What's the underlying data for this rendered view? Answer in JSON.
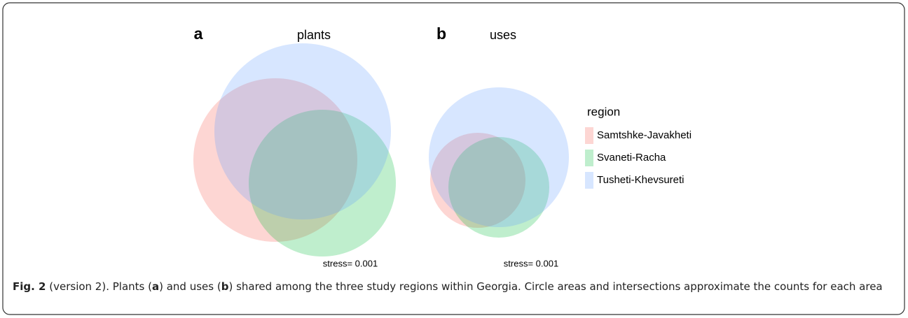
{
  "panels": [
    {
      "letter": "a",
      "title": "plants",
      "stress": "stress= 0.001"
    },
    {
      "letter": "b",
      "title": "uses",
      "stress": "stress= 0.001"
    }
  ],
  "legend": {
    "title": "region",
    "items": [
      "Samtshke-Javakheti",
      "Svaneti-Racha",
      "Tusheti-Khevsureti"
    ]
  },
  "caption": {
    "label": "Fig. 2",
    "parts": [
      " (version 2). Plants (",
      "a",
      ") and uses (",
      "b",
      ") shared among the three study regions within Georgia. Circle areas and intersections approximate the counts for each area"
    ]
  }
}
